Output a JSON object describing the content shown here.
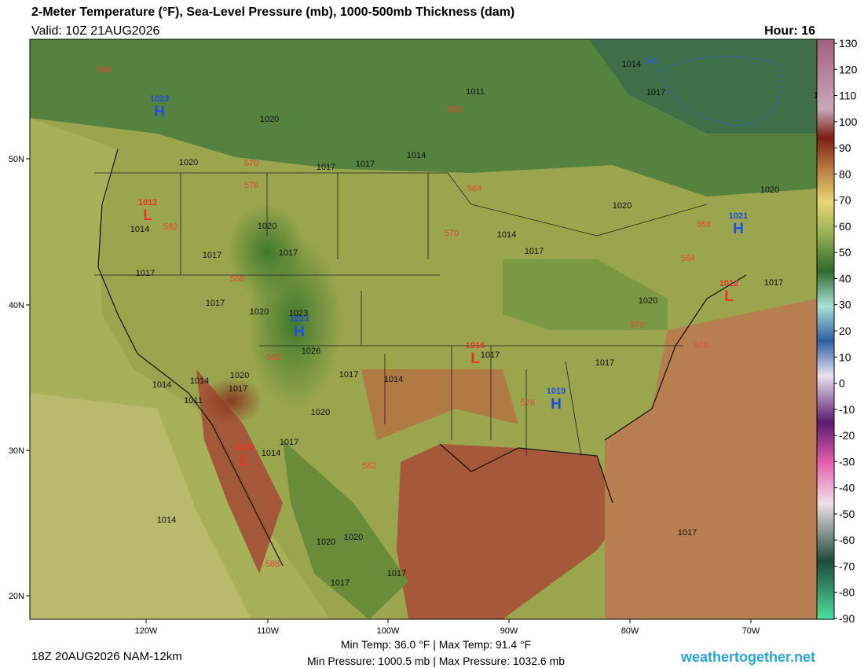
{
  "header": {
    "title": "2-Meter Temperature (°F), Sea-Level Pressure (mb), 1000-500mb Thickness (dam)",
    "valid": "Valid: 10Z 21AUG2026",
    "hour": "Hour: 16"
  },
  "colorbar": {
    "ticks": [
      130,
      120,
      110,
      100,
      90,
      80,
      70,
      60,
      50,
      40,
      30,
      20,
      10,
      0,
      -10,
      -20,
      -30,
      -40,
      -50,
      -60,
      -70,
      -80,
      -90
    ]
  },
  "map": {
    "lat_labels": [
      "50N",
      "40N",
      "30N",
      "20N"
    ],
    "lon_labels": [
      "120W",
      "110W",
      "100W",
      "90W",
      "80W",
      "70W"
    ],
    "pressure_labels": [
      "1020",
      "1020",
      "1020",
      "1017",
      "1017",
      "1014",
      "1011",
      "1014",
      "1017",
      "1020",
      "1020",
      "1014",
      "1017",
      "1020",
      "1017",
      "1017",
      "1017",
      "1020",
      "1023",
      "1026",
      "1014",
      "1017",
      "1020",
      "1017",
      "1017",
      "1017",
      "1017",
      "1014",
      "1020",
      "1020",
      "1017",
      "1014",
      "1014",
      "1011",
      "1017",
      "1014",
      "1014",
      "1020",
      "1020",
      "1017",
      "1017",
      "1017"
    ],
    "thickness_labels": [
      "564",
      "558",
      "564",
      "570",
      "576",
      "582",
      "570",
      "588",
      "582",
      "570",
      "576",
      "558",
      "564",
      "582",
      "588",
      "576",
      "540"
    ],
    "centers": [
      {
        "letter": "H",
        "value": "1023"
      },
      {
        "letter": "L",
        "value": "1012"
      },
      {
        "letter": "H",
        "value": "1023"
      },
      {
        "letter": "L",
        "value": "1016"
      },
      {
        "letter": "H",
        "value": "1019"
      },
      {
        "letter": "L",
        "value": "1010"
      },
      {
        "letter": "H",
        "value": "1021"
      },
      {
        "letter": "L",
        "value": "1012"
      }
    ]
  },
  "footer": {
    "run": "18Z 20AUG2026 NAM-12km",
    "temps": "Min Temp:  36.0 °F | Max Temp:  91.4 °F",
    "pressures": "Min Pressure: 1000.5 mb | Max Pressure: 1032.6 mb",
    "site": "weathertogether.net"
  }
}
